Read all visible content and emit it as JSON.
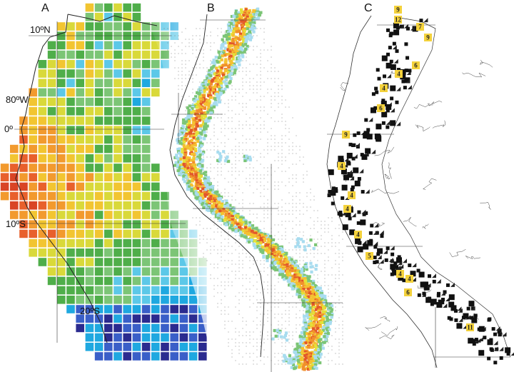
{
  "panels": [
    {
      "letter": "A"
    },
    {
      "letter": "B"
    },
    {
      "letter": "C"
    }
  ],
  "coordinate_labels": {
    "lat_10N": "10ºN",
    "lon_80W": "80ºW",
    "lat_0": "0º",
    "lat_10S": "10ºS",
    "lat_20S": "20ºS"
  },
  "panel_c_badges": [
    "9",
    "12",
    "7",
    "9",
    "4",
    "6",
    "4",
    "6",
    "9",
    "4",
    "4",
    "4",
    "4",
    "5",
    "4",
    "4",
    "6",
    "11"
  ],
  "colors": {
    "richness_scale": [
      "#2b2b8f",
      "#3a5fc8",
      "#1fa8e0",
      "#5cc8e8",
      "#7cc576",
      "#4fae4a",
      "#d9d93a",
      "#f2c531",
      "#f29a2e",
      "#e8602c",
      "#d94425"
    ],
    "badge_fill": "#f4d23c",
    "range_black": "#111111"
  }
}
